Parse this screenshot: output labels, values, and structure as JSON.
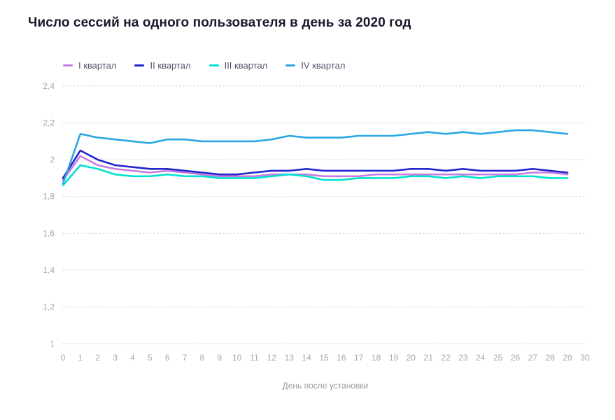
{
  "chart_data": {
    "type": "line",
    "title": "Число сессий на одного пользователя в день за 2020 год",
    "xlabel": "День после установки",
    "ylabel": "",
    "ylim": [
      1,
      2.4
    ],
    "x_axis_max": 30,
    "grid": "horizontal-dotted",
    "legend_position": "top-left",
    "colors": {
      "grid": "#dddde4",
      "tick_text": "#a6a6b1",
      "title_text": "#18182b"
    },
    "y_ticks": [
      {
        "value": 2.4,
        "label": "2,4"
      },
      {
        "value": 2.2,
        "label": "2,2"
      },
      {
        "value": 2.0,
        "label": "2"
      },
      {
        "value": 1.8,
        "label": "1,8"
      },
      {
        "value": 1.6,
        "label": "1,6"
      },
      {
        "value": 1.4,
        "label": "1,4"
      },
      {
        "value": 1.2,
        "label": "1,2"
      },
      {
        "value": 1.0,
        "label": "1"
      }
    ],
    "x_ticks": [
      "0",
      "1",
      "2",
      "3",
      "4",
      "5",
      "6",
      "7",
      "8",
      "9",
      "10",
      "11",
      "12",
      "13",
      "14",
      "15",
      "16",
      "17",
      "18",
      "19",
      "20",
      "21",
      "22",
      "23",
      "24",
      "25",
      "26",
      "27",
      "28",
      "29",
      "30"
    ],
    "x": [
      0,
      1,
      2,
      3,
      4,
      5,
      6,
      7,
      8,
      9,
      10,
      11,
      12,
      13,
      14,
      15,
      16,
      17,
      18,
      19,
      20,
      21,
      22,
      23,
      24,
      25,
      26,
      27,
      28,
      29
    ],
    "series": [
      {
        "name": "I квартал",
        "color": "#c77ddf",
        "values": [
          1.89,
          2.02,
          1.97,
          1.95,
          1.94,
          1.93,
          1.94,
          1.93,
          1.92,
          1.91,
          1.91,
          1.91,
          1.92,
          1.92,
          1.92,
          1.91,
          1.91,
          1.91,
          1.92,
          1.92,
          1.92,
          1.92,
          1.92,
          1.92,
          1.92,
          1.92,
          1.92,
          1.93,
          1.93,
          1.92
        ]
      },
      {
        "name": "II квартал",
        "color": "#2425cf",
        "values": [
          1.9,
          2.05,
          2.0,
          1.97,
          1.96,
          1.95,
          1.95,
          1.94,
          1.93,
          1.92,
          1.92,
          1.93,
          1.94,
          1.94,
          1.95,
          1.94,
          1.94,
          1.94,
          1.94,
          1.94,
          1.95,
          1.95,
          1.94,
          1.95,
          1.94,
          1.94,
          1.94,
          1.95,
          1.94,
          1.93
        ]
      },
      {
        "name": "III квартал",
        "color": "#04e1d0",
        "values": [
          1.86,
          1.97,
          1.95,
          1.92,
          1.91,
          1.91,
          1.92,
          1.91,
          1.91,
          1.9,
          1.9,
          1.9,
          1.91,
          1.92,
          1.91,
          1.89,
          1.89,
          1.9,
          1.9,
          1.9,
          1.91,
          1.91,
          1.9,
          1.91,
          1.9,
          1.91,
          1.91,
          1.91,
          1.9,
          1.9
        ]
      },
      {
        "name": "IV квартал",
        "color": "#2aa7e5",
        "values": [
          1.87,
          2.14,
          2.12,
          2.11,
          2.1,
          2.09,
          2.11,
          2.11,
          2.1,
          2.1,
          2.1,
          2.1,
          2.11,
          2.13,
          2.12,
          2.12,
          2.12,
          2.13,
          2.13,
          2.13,
          2.14,
          2.15,
          2.14,
          2.15,
          2.14,
          2.15,
          2.16,
          2.16,
          2.15,
          2.14
        ]
      }
    ]
  }
}
